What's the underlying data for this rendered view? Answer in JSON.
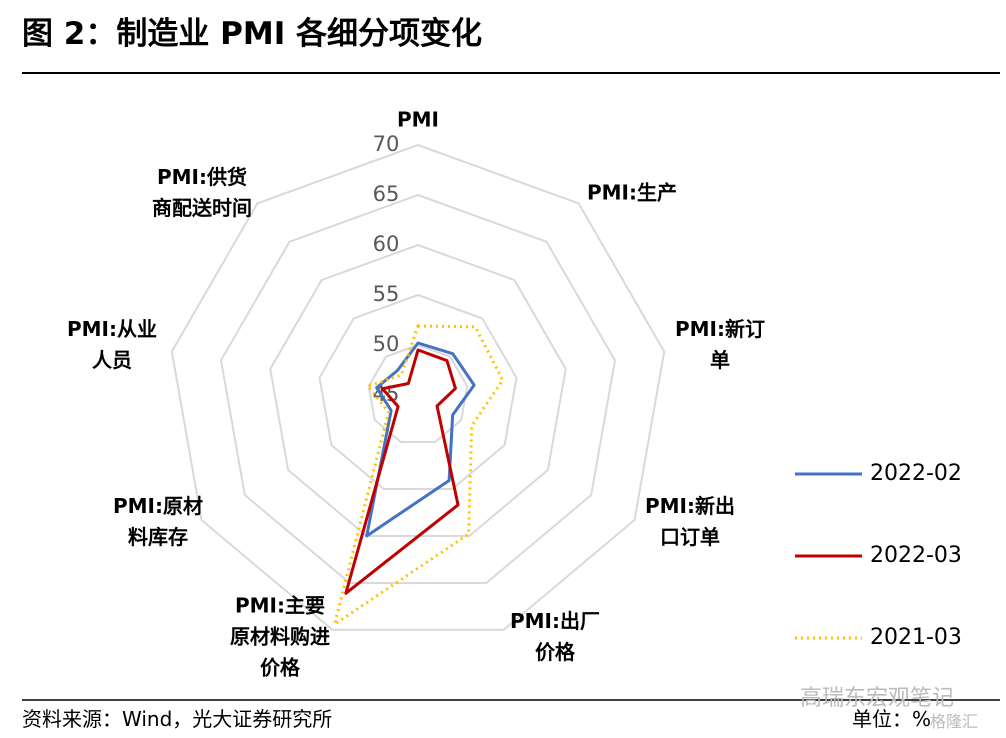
{
  "title": "图 2：制造业 PMI 各细分项变化",
  "source": "资料来源：Wind，光大证券研究所",
  "unit": "单位：%",
  "watermark": "高瑞东宏观笔记",
  "watermark2": "格隆汇",
  "chart_data": {
    "type": "radar",
    "categories": [
      "PMI",
      "PMI:生产",
      "PMI:新订单",
      "PMI:新出口订单",
      "PMI:出厂价格",
      "PMI:主要原材料购进价格",
      "PMI:原材料库存",
      "PMI:从业人员",
      "PMI:供货商配送时间"
    ],
    "ylim": [
      45,
      70
    ],
    "yticks": [
      45,
      50,
      55,
      60,
      65,
      70
    ],
    "grid": true,
    "series": [
      {
        "name": "2022-02",
        "color": "#4472c4",
        "dash": "solid",
        "values": [
          50.2,
          50.4,
          50.7,
          49.0,
          54.1,
          60.0,
          48.1,
          49.2,
          48.2
        ]
      },
      {
        "name": "2022-03",
        "color": "#c00000",
        "dash": "solid",
        "values": [
          49.5,
          49.5,
          48.8,
          47.2,
          56.7,
          66.1,
          47.3,
          48.6,
          46.5
        ]
      },
      {
        "name": "2021-03",
        "color": "#ffc000",
        "dash": "dotted",
        "values": [
          51.9,
          53.9,
          53.6,
          51.2,
          59.8,
          69.4,
          48.4,
          50.1,
          47.6
        ]
      }
    ]
  }
}
